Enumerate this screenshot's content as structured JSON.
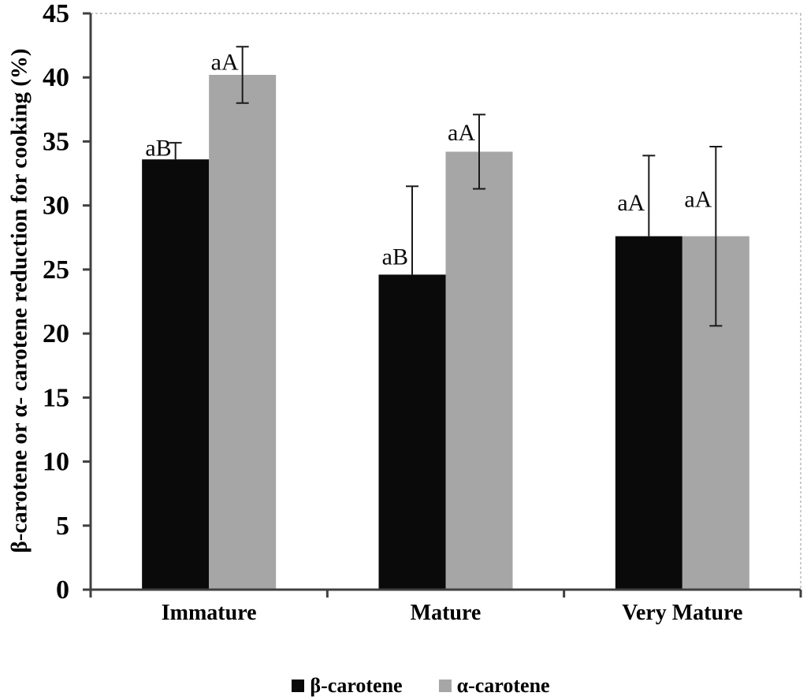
{
  "chart_data": {
    "type": "bar",
    "title": "",
    "xlabel": "",
    "ylabel": "β-carotene or α- carotene reduction for cooking (%)",
    "categories": [
      "Immature",
      "Mature",
      "Very Mature"
    ],
    "series": [
      {
        "name": "β-carotene",
        "key": "beta-carotene",
        "color": "#0a0a0a",
        "values": [
          33.6,
          24.6,
          27.6
        ],
        "errors_up": [
          1.3,
          6.9,
          6.3
        ],
        "errors_down": [
          0,
          0,
          0
        ],
        "annotations": [
          "aB",
          "aB",
          "aA"
        ],
        "annotation_y": [
          33.9,
          25.4,
          29.6
        ]
      },
      {
        "name": "α-carotene",
        "key": "alpha-carotene",
        "color": "#a6a6a6",
        "values": [
          40.2,
          34.2,
          27.6
        ],
        "errors_up": [
          2.2,
          2.9,
          7.0
        ],
        "errors_down": [
          2.2,
          2.9,
          7.0
        ],
        "annotations": [
          "aA",
          "aA",
          "aA"
        ],
        "annotation_y": [
          40.6,
          35.1,
          29.9
        ]
      }
    ],
    "ylim": [
      0,
      45
    ],
    "yticks": [
      0,
      5,
      10,
      15,
      20,
      25,
      30,
      35,
      40,
      45
    ],
    "legend_position": "bottom",
    "grid": "top-gridline-dashed, right-border-dashed",
    "colors": {
      "axis": "#404040",
      "error_bar": "#1a1a1a",
      "dashed_border": "#b8b8b8",
      "background": "#ffffff"
    }
  }
}
